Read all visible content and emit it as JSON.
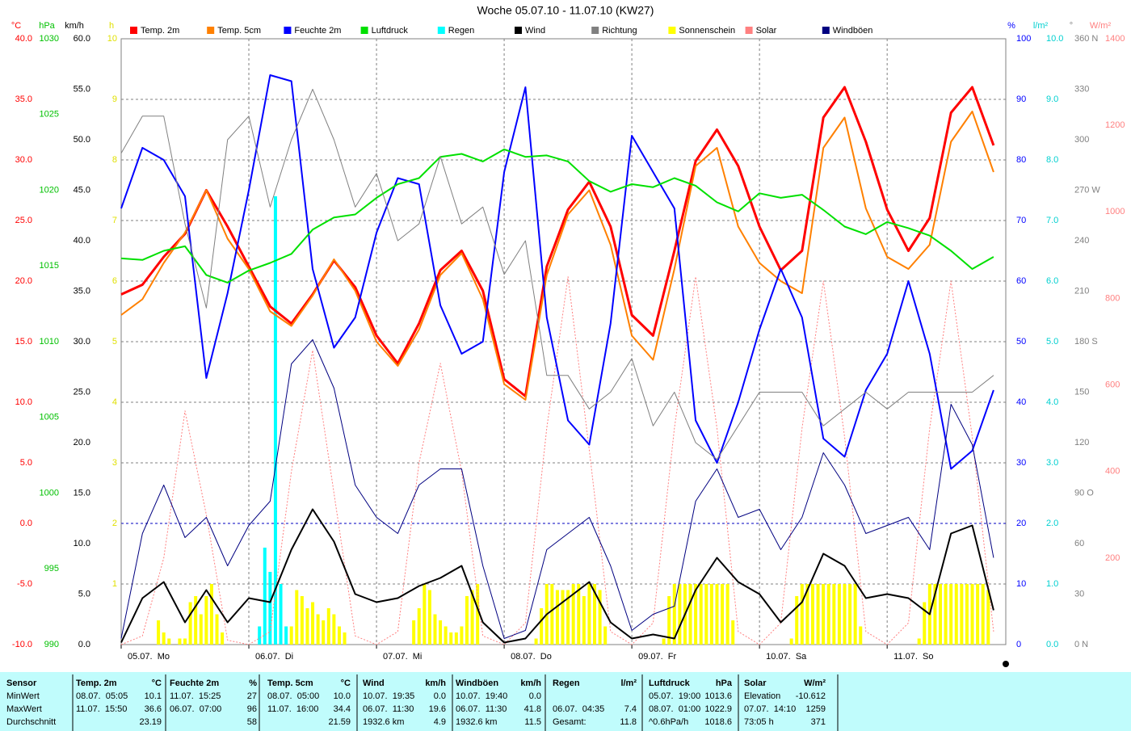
{
  "chart_data": {
    "type": "line",
    "title": "Woche 05.07.10 - 11.07.10 (KW27)",
    "xlim": [
      0,
      166.3
    ],
    "xticks": [
      {
        "value": 0,
        "label": "05.07.  Mo"
      },
      {
        "value": 24,
        "label": "06.07.  Di"
      },
      {
        "value": 48,
        "label": "07.07.  Mi"
      },
      {
        "value": 72,
        "label": "08.07.  Do"
      },
      {
        "value": 96,
        "label": "09.07.  Fr"
      },
      {
        "value": 120,
        "label": "10.07.  Sa"
      },
      {
        "value": 144,
        "label": "11.07.  So"
      }
    ],
    "grid": true,
    "axes": {
      "temp": {
        "unit": "°C",
        "color": "#ff0000",
        "lim": [
          -10,
          40
        ],
        "ticks": [
          {
            "value": -10,
            "label": "-10.0"
          },
          {
            "value": -5,
            "label": "-5.0"
          },
          {
            "value": 0,
            "label": "0.0"
          },
          {
            "value": 5,
            "label": "5.0"
          },
          {
            "value": 10,
            "label": "10.0"
          },
          {
            "value": 15,
            "label": "15.0"
          },
          {
            "value": 20,
            "label": "20.0"
          },
          {
            "value": 25,
            "label": "25.0"
          },
          {
            "value": 30,
            "label": "30.0"
          },
          {
            "value": 35,
            "label": "35.0"
          },
          {
            "value": 40,
            "label": "40.0"
          }
        ]
      },
      "hpa": {
        "unit": "hPa",
        "color": "#00c000",
        "lim": [
          990,
          1030
        ],
        "ticks": [
          990,
          995,
          1000,
          1005,
          1010,
          1015,
          1020,
          1025,
          1030
        ]
      },
      "kmh": {
        "unit": "km/h",
        "color": "#000000",
        "lim": [
          0,
          60
        ],
        "ticks": [
          {
            "value": 0,
            "label": "0.0"
          },
          {
            "value": 5,
            "label": "5.0"
          },
          {
            "value": 10,
            "label": "10.0"
          },
          {
            "value": 15,
            "label": "15.0"
          },
          {
            "value": 20,
            "label": "20.0"
          },
          {
            "value": 25,
            "label": "25.0"
          },
          {
            "value": 30,
            "label": "30.0"
          },
          {
            "value": 35,
            "label": "35.0"
          },
          {
            "value": 40,
            "label": "40.0"
          },
          {
            "value": 45,
            "label": "45.0"
          },
          {
            "value": 50,
            "label": "50.0"
          },
          {
            "value": 55,
            "label": "55.0"
          },
          {
            "value": 60,
            "label": "60.0"
          }
        ]
      },
      "h": {
        "unit": "h",
        "color": "#e0e000",
        "lim": [
          0,
          10
        ],
        "ticks": [
          1,
          2,
          3,
          4,
          5,
          6,
          7,
          8,
          9,
          10
        ]
      },
      "pct": {
        "unit": "%",
        "color": "#0000ff",
        "lim": [
          0,
          100
        ],
        "ticks": [
          0,
          10,
          20,
          30,
          40,
          50,
          60,
          70,
          80,
          90,
          100
        ]
      },
      "lm2": {
        "unit": "l/m²",
        "color": "#00d0d0",
        "lim": [
          0,
          10
        ],
        "ticks": [
          {
            "value": 0,
            "label": "0.0"
          },
          {
            "value": 1,
            "label": "1.0"
          },
          {
            "value": 2,
            "label": "2.0"
          },
          {
            "value": 3,
            "label": "3.0"
          },
          {
            "value": 4,
            "label": "4.0"
          },
          {
            "value": 5,
            "label": "5.0"
          },
          {
            "value": 6,
            "label": "6.0"
          },
          {
            "value": 7,
            "label": "7.0"
          },
          {
            "value": 8,
            "label": "8.0"
          },
          {
            "value": 9,
            "label": "9.0"
          },
          {
            "value": 10,
            "label": "10.0"
          }
        ]
      },
      "deg": {
        "unit": "°",
        "color": "#808080",
        "lim": [
          0,
          360
        ],
        "ticks": [
          {
            "value": 0,
            "label": "0   N"
          },
          30,
          60,
          {
            "value": 90,
            "label": "90   O"
          },
          120,
          150,
          {
            "value": 180,
            "label": "180 S"
          },
          210,
          240,
          {
            "value": 270,
            "label": "270 W"
          },
          300,
          330,
          {
            "value": 360,
            "label": "360 N"
          }
        ]
      },
      "wm2": {
        "unit": "W/m²",
        "color": "#ff8080",
        "lim": [
          0,
          1400
        ],
        "ticks": [
          200,
          400,
          600,
          800,
          1000,
          1200,
          1400
        ]
      }
    },
    "x": [
      0,
      4,
      8,
      12,
      16,
      20,
      24,
      28,
      32,
      36,
      40,
      44,
      48,
      52,
      56,
      60,
      64,
      68,
      72,
      76,
      80,
      84,
      88,
      92,
      96,
      100,
      104,
      108,
      112,
      116,
      120,
      124,
      128,
      132,
      136,
      140,
      144,
      148,
      152,
      156,
      160,
      164
    ],
    "series": [
      {
        "name": "Temp. 2m",
        "color": "#ff0000",
        "axis": "temp",
        "style": "line",
        "width": 3,
        "values": [
          18.9,
          19.7,
          22,
          23.9,
          27.5,
          24.5,
          21.2,
          17.9,
          16.5,
          18.9,
          21.7,
          19.5,
          15.5,
          13.2,
          16.5,
          20.9,
          22.5,
          19.2,
          11.9,
          10.5,
          21.2,
          25.9,
          28.2,
          24.5,
          17.2,
          15.5,
          22.5,
          29.9,
          32.5,
          29.5,
          24.5,
          20.9,
          22.5,
          33.5,
          36,
          31.5,
          25.9,
          22.5,
          25.2,
          33.9,
          36,
          31.2
        ]
      },
      {
        "name": "Temp. 5cm",
        "color": "#ff8000",
        "axis": "temp",
        "style": "line",
        "width": 2,
        "values": [
          17.2,
          18.5,
          21.5,
          24,
          27.5,
          23.5,
          21,
          17.5,
          16.3,
          18.8,
          21.8,
          19.2,
          15,
          13,
          16,
          20.5,
          22.3,
          18.5,
          11.5,
          10.2,
          20.5,
          25.5,
          27.5,
          23,
          15.5,
          13.5,
          21,
          29.5,
          31,
          24.5,
          21.5,
          20,
          19,
          31,
          33.5,
          26,
          22,
          21,
          23,
          31.5,
          34,
          29
        ]
      },
      {
        "name": "Feuchte 2m",
        "color": "#0000ff",
        "axis": "pct",
        "style": "line",
        "width": 2,
        "values": [
          72,
          82,
          80,
          74,
          44,
          58,
          75,
          94,
          93,
          62,
          49,
          54,
          68,
          77,
          76,
          56,
          48,
          50,
          78,
          92,
          54,
          37,
          33,
          53,
          84,
          78,
          72,
          37,
          30,
          40,
          52,
          62,
          54,
          34,
          31,
          42,
          48,
          60,
          48,
          29,
          32,
          42
        ]
      },
      {
        "name": "Luftdruck",
        "color": "#00e000",
        "axis": "hpa",
        "style": "line",
        "width": 2,
        "values": [
          1015.5,
          1015.4,
          1016,
          1016.3,
          1014.4,
          1013.9,
          1014.7,
          1015.2,
          1015.8,
          1017.4,
          1018.2,
          1018.4,
          1019.5,
          1020.4,
          1020.8,
          1022.2,
          1022.4,
          1021.9,
          1022.7,
          1022.2,
          1022.3,
          1021.9,
          1020.6,
          1019.9,
          1020.4,
          1020.2,
          1020.8,
          1020.3,
          1019.2,
          1018.6,
          1019.8,
          1019.5,
          1019.7,
          1018.7,
          1017.6,
          1017.1,
          1017.9,
          1017.5,
          1017,
          1016,
          1014.8,
          1015.6
        ]
      },
      {
        "name": "Regen",
        "color": "#00ffff",
        "axis": "lm2",
        "style": "bar",
        "x": [
          26,
          27,
          28,
          29,
          30,
          31
        ],
        "values": [
          0.3,
          1.6,
          1.2,
          7.4,
          1.0,
          0.3
        ]
      },
      {
        "name": "Wind",
        "color": "#000000",
        "axis": "kmh",
        "style": "line",
        "width": 2,
        "values": [
          0.2,
          4.6,
          6.2,
          2.2,
          5.4,
          2.2,
          4.6,
          4.2,
          9.4,
          13.4,
          10.2,
          5,
          4.2,
          4.6,
          5.8,
          6.6,
          7.8,
          2.2,
          0.2,
          0.6,
          3,
          4.6,
          6.2,
          2.2,
          0.6,
          1,
          0.6,
          5.4,
          8.6,
          6.2,
          5,
          2.2,
          4.2,
          9,
          7.8,
          4.6,
          5,
          4.6,
          3,
          11,
          11.8,
          3.4
        ]
      },
      {
        "name": "Richtung",
        "color": "#808080",
        "axis": "deg",
        "style": "line",
        "width": 1,
        "values": [
          292,
          314,
          314,
          250,
          200,
          300,
          314,
          260,
          300,
          330,
          300,
          260,
          280,
          240,
          250,
          290,
          250,
          260,
          220,
          240,
          160,
          160,
          140,
          150,
          170,
          130,
          150,
          120,
          110,
          130,
          150,
          150,
          150,
          130,
          140,
          150,
          140,
          150,
          150,
          150,
          150,
          160
        ]
      },
      {
        "name": "Sonnenschein",
        "color": "#ffff00",
        "axis": "h",
        "style": "bar",
        "x": [
          6,
          7,
          8,
          9,
          10,
          11,
          12,
          13,
          14,
          15,
          16,
          17,
          18,
          19,
          30,
          31,
          32,
          33,
          34,
          35,
          36,
          37,
          38,
          39,
          40,
          41,
          42,
          43,
          54,
          55,
          56,
          57,
          58,
          59,
          60,
          61,
          62,
          63,
          64,
          65,
          66,
          67,
          78,
          79,
          80,
          81,
          82,
          83,
          84,
          85,
          86,
          87,
          88,
          89,
          90,
          91,
          102,
          103,
          104,
          105,
          106,
          107,
          108,
          109,
          110,
          111,
          112,
          113,
          114,
          115,
          126,
          127,
          128,
          129,
          130,
          131,
          132,
          133,
          134,
          135,
          136,
          137,
          138,
          139,
          150,
          151,
          152,
          153,
          154,
          155,
          156,
          157,
          158,
          159,
          160,
          161,
          162,
          163
        ],
        "values": [
          0,
          0.4,
          0.2,
          0.1,
          0,
          0.1,
          0.1,
          0.7,
          0.8,
          0.5,
          0.8,
          1,
          0.5,
          0.2,
          0,
          0,
          0.3,
          0.9,
          0.8,
          0.6,
          0.7,
          0.5,
          0.4,
          0.6,
          0.5,
          0.3,
          0.2,
          0,
          0,
          0.4,
          0.6,
          1,
          0.9,
          0.5,
          0.4,
          0.3,
          0.2,
          0.2,
          0.3,
          0.8,
          0.9,
          1,
          0.1,
          0.6,
          1,
          1,
          0.9,
          0.9,
          0.9,
          1,
          1,
          0.8,
          1,
          1,
          0.9,
          0.3,
          0.1,
          0.8,
          1,
          1,
          1,
          1,
          1,
          1,
          1,
          1,
          1,
          1,
          1,
          0.4,
          0.1,
          0.8,
          1,
          1,
          1,
          1,
          1,
          1,
          1,
          1,
          1,
          1,
          1,
          0.3,
          0.1,
          0.7,
          1,
          1,
          1,
          1,
          1,
          1,
          1,
          1,
          1,
          1,
          1,
          0.9
        ]
      },
      {
        "name": "Solar",
        "color": "#ff8080",
        "axis": "wm2",
        "style": "dotted",
        "width": 1,
        "values": [
          0,
          20,
          200,
          540,
          300,
          10,
          0,
          30,
          400,
          680,
          350,
          20,
          0,
          30,
          420,
          650,
          400,
          20,
          0,
          50,
          500,
          850,
          450,
          30,
          0,
          50,
          500,
          850,
          500,
          30,
          0,
          50,
          500,
          840,
          480,
          30,
          0,
          50,
          500,
          840,
          480,
          30
        ]
      },
      {
        "name": "Windböen",
        "color": "#000080",
        "axis": "kmh",
        "style": "line",
        "width": 1,
        "values": [
          0.6,
          11,
          15.8,
          10.6,
          12.6,
          7.8,
          11.8,
          14.2,
          27.8,
          30.2,
          25.4,
          15.8,
          12.6,
          11,
          15.8,
          17.4,
          17.4,
          7.8,
          0.6,
          1.4,
          9.4,
          11,
          12.6,
          7.8,
          1.4,
          3,
          3.8,
          14.2,
          17.4,
          12.6,
          13.4,
          9.4,
          12.6,
          19,
          15.8,
          11,
          11.8,
          12.6,
          9.4,
          23.8,
          19.8,
          8.6
        ]
      }
    ]
  },
  "stats": {
    "labels": [
      "Sensor",
      "MinWert",
      "MaxWert",
      "Durchschnitt"
    ],
    "columns": [
      {
        "name": "Temp. 2m",
        "unit": "°C",
        "rows": [
          {
            "label": "08.07.  05:05",
            "value": "10.1"
          },
          {
            "label": "11.07.  15:50",
            "value": "36.6"
          },
          {
            "value": "23.19"
          }
        ]
      },
      {
        "name": "Feuchte 2m",
        "unit": "%",
        "rows": [
          {
            "label": "11.07.  15:25",
            "value": "27"
          },
          {
            "label": "06.07.  07:00",
            "value": "96"
          },
          {
            "value": "58"
          }
        ]
      },
      {
        "name": "Temp. 5cm",
        "unit": "°C",
        "rows": [
          {
            "label": "08.07.  05:00",
            "value": "10.0"
          },
          {
            "label": "11.07.  16:00",
            "value": "34.4"
          },
          {
            "value": "21.59"
          }
        ]
      },
      {
        "name": "Wind",
        "unit": "km/h",
        "rows": [
          {
            "label": "10.07.  19:35",
            "value": "0.0"
          },
          {
            "label": "06.07.  11:30",
            "value": "19.6"
          },
          {
            "label": "1932.6 km",
            "value": "4.9"
          }
        ]
      },
      {
        "name": "Windböen",
        "unit": "km/h",
        "rows": [
          {
            "label": "10.07.  19:40",
            "value": "0.0"
          },
          {
            "label": "06.07.  11:30",
            "value": "41.8"
          },
          {
            "label": "1932.6 km",
            "value": "11.5"
          }
        ]
      },
      {
        "name": "Regen",
        "unit": "l/m²",
        "rows": [
          null,
          {
            "label": "06.07.  04:35",
            "value": "7.4"
          },
          {
            "label": "Gesamt:",
            "value": "11.8"
          }
        ]
      },
      {
        "name": "Luftdruck",
        "unit": "hPa",
        "rows": [
          {
            "label": "05.07.  19:00",
            "value": "1013.6"
          },
          {
            "label": "08.07.  01:00",
            "value": "1022.9"
          },
          {
            "label": "^0.6hPa/h",
            "value": "1018.6"
          }
        ]
      },
      {
        "name": "Solar",
        "unit": "W/m²",
        "rows": [
          {
            "label": "Elevation",
            "value": "-10.612"
          },
          {
            "label": "07.07.  14:10",
            "value": "1259"
          },
          {
            "label": "73:05 h",
            "value": "371"
          }
        ]
      }
    ]
  }
}
